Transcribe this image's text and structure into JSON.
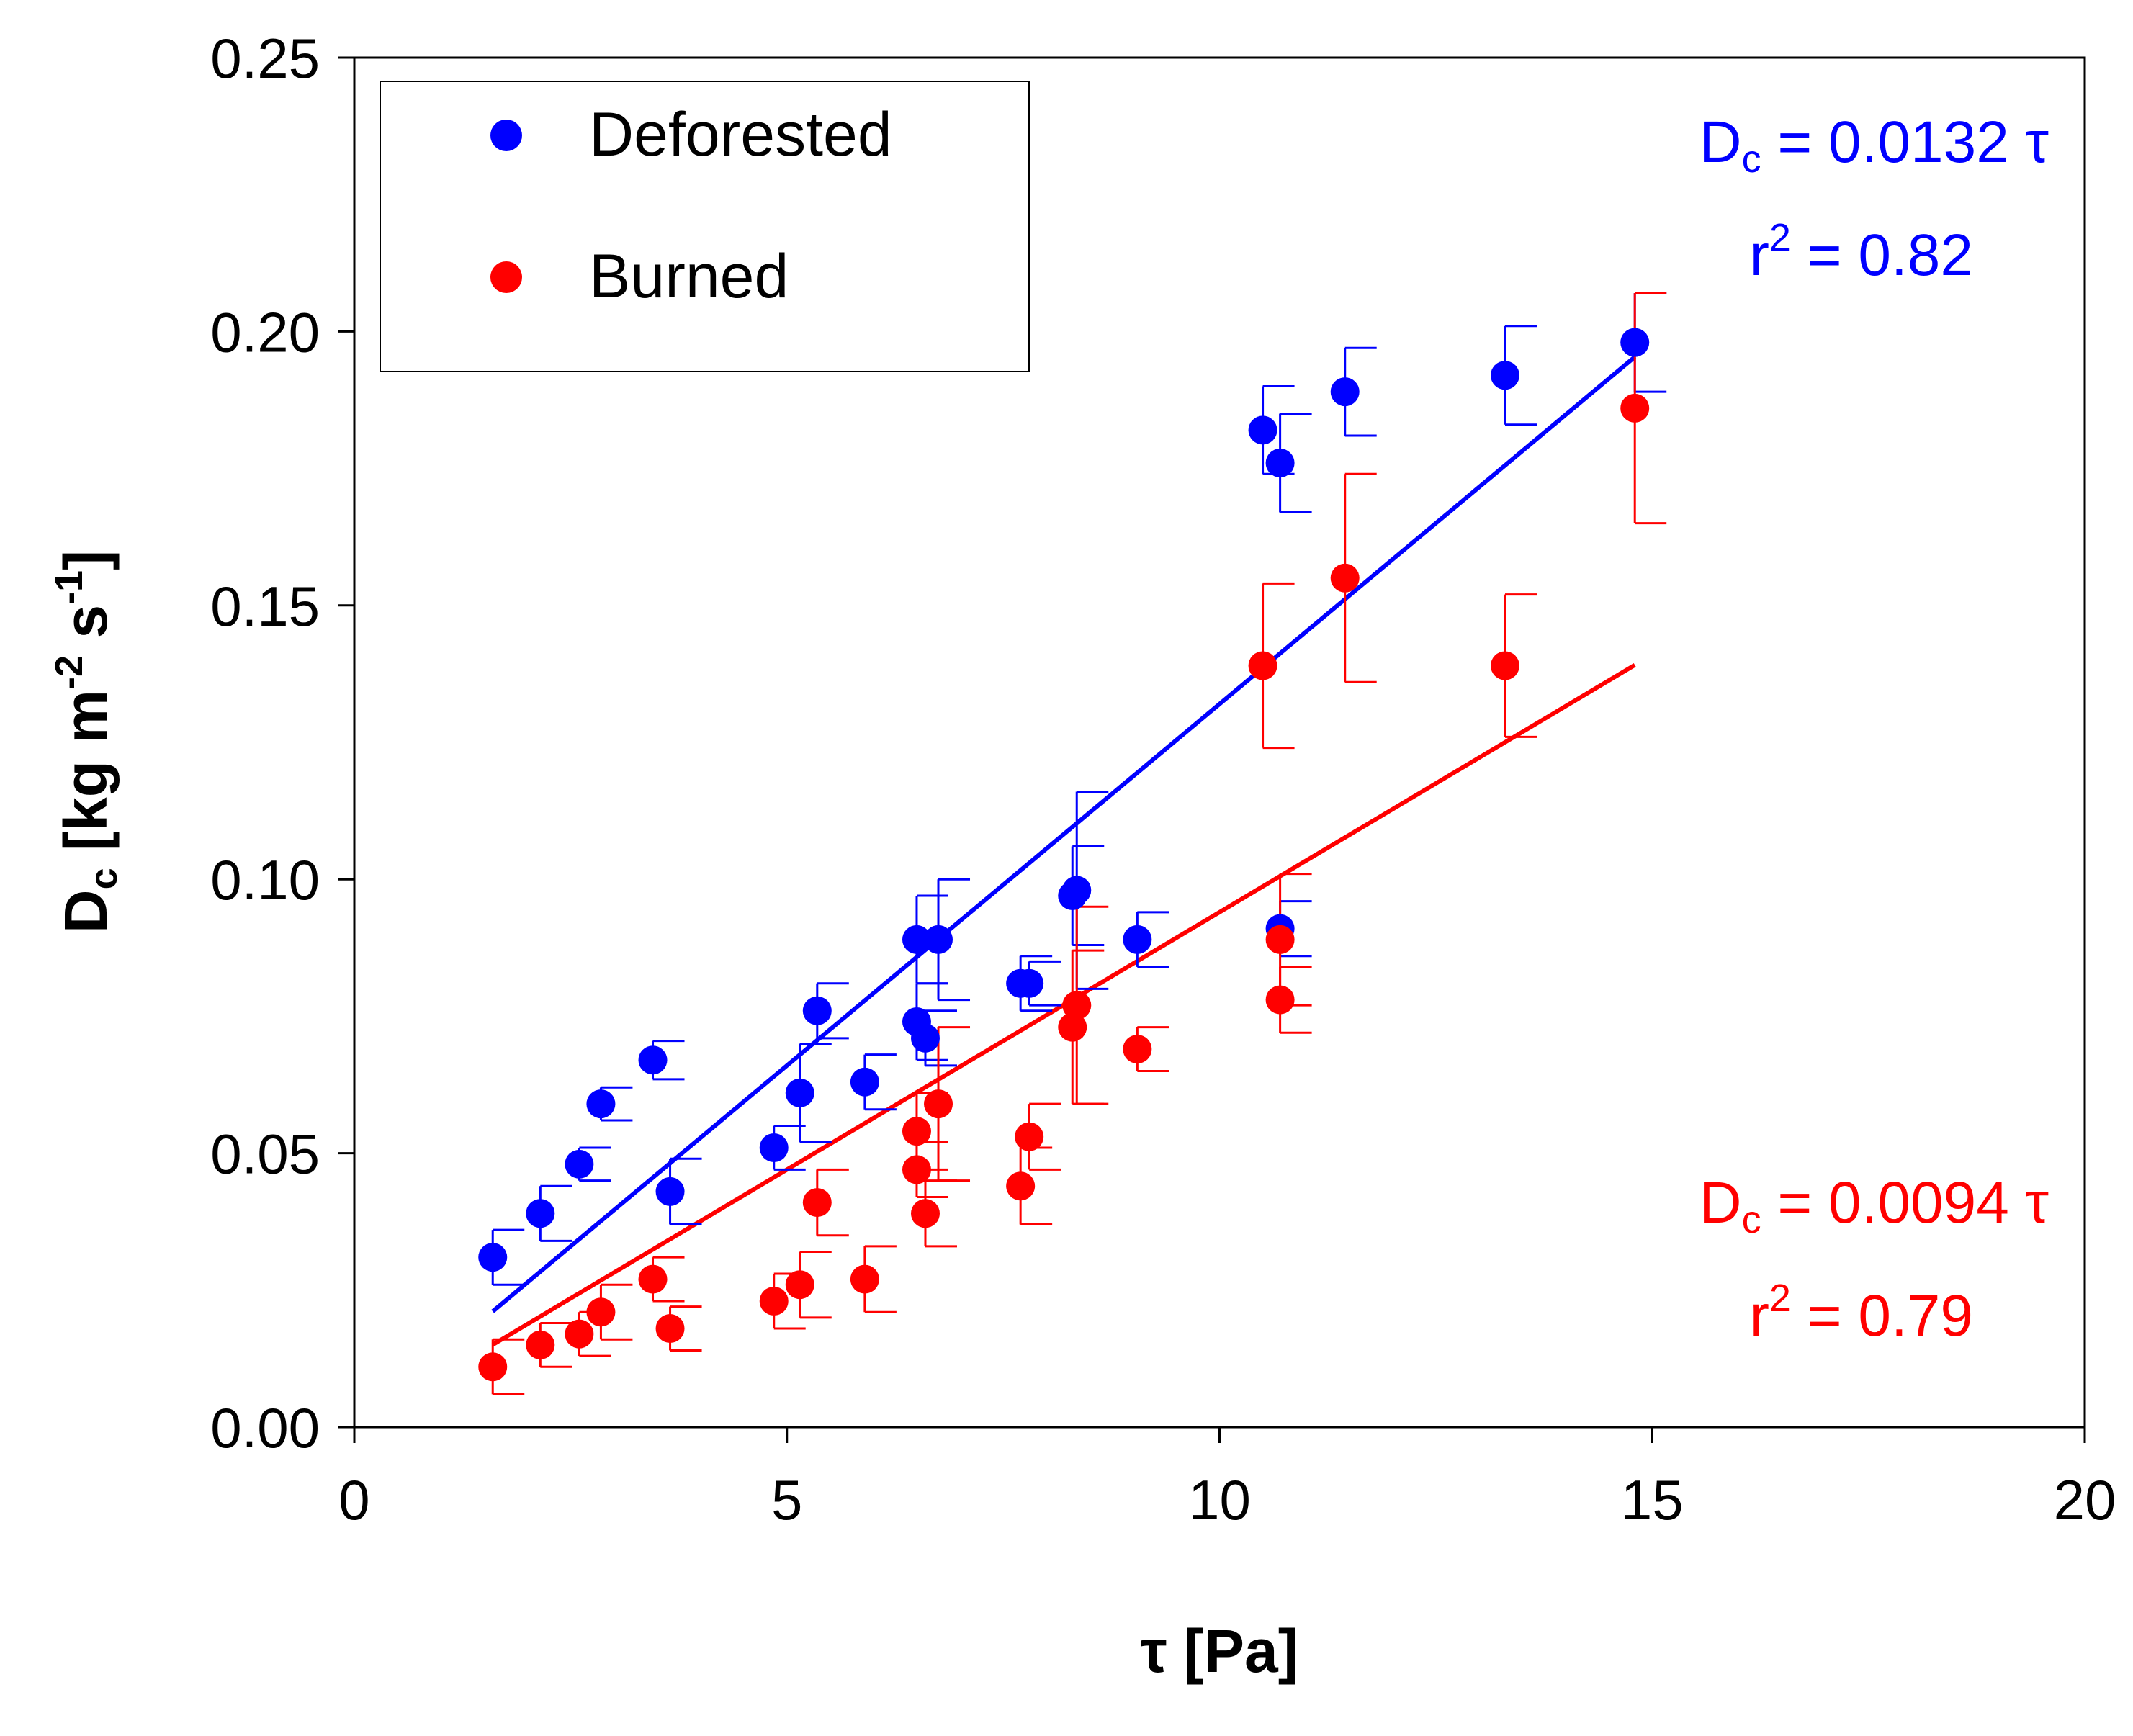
{
  "chart_data": {
    "type": "scatter",
    "title": "",
    "xlabel": "τ [Pa]",
    "ylabel_main": "D",
    "ylabel_sub": "c",
    "ylabel_unit_a": " [kg m",
    "ylabel_exp_a": "-2",
    "ylabel_unit_b": " s",
    "ylabel_exp_b": "-1",
    "ylabel_unit_c": "]",
    "xlim": [
      0,
      20
    ],
    "ylim": [
      0,
      0.25
    ],
    "xticks": [
      0,
      5,
      10,
      15,
      20
    ],
    "xtick_labels": [
      "0",
      "5",
      "10",
      "15",
      "20"
    ],
    "yticks": [
      0,
      0.05,
      0.1,
      0.15,
      0.2,
      0.25
    ],
    "ytick_labels": [
      "0.00",
      "0.05",
      "0.10",
      "0.15",
      "0.20",
      "0.25"
    ],
    "grid": false,
    "legend": {
      "position": "top-left",
      "entries": [
        {
          "label": "Deforested",
          "color": "#0000ff"
        },
        {
          "label": "Burned",
          "color": "#ff0000"
        }
      ]
    },
    "series": [
      {
        "name": "Deforested",
        "color": "#0000ff",
        "points": [
          {
            "x": 1.6,
            "y": 0.031,
            "err": 0.005
          },
          {
            "x": 2.15,
            "y": 0.039,
            "err": 0.005
          },
          {
            "x": 2.6,
            "y": 0.048,
            "err": 0.003
          },
          {
            "x": 2.85,
            "y": 0.059,
            "err": 0.003
          },
          {
            "x": 3.45,
            "y": 0.067,
            "err": 0.0035
          },
          {
            "x": 3.65,
            "y": 0.043,
            "err": 0.006
          },
          {
            "x": 4.85,
            "y": 0.051,
            "err": 0.004
          },
          {
            "x": 5.15,
            "y": 0.061,
            "err": 0.009
          },
          {
            "x": 5.35,
            "y": 0.076,
            "err": 0.005
          },
          {
            "x": 5.9,
            "y": 0.063,
            "err": 0.005
          },
          {
            "x": 6.5,
            "y": 0.089,
            "err": 0.008
          },
          {
            "x": 6.5,
            "y": 0.074,
            "err": 0.007
          },
          {
            "x": 6.6,
            "y": 0.071,
            "err": 0.005
          },
          {
            "x": 6.75,
            "y": 0.089,
            "err": 0.011
          },
          {
            "x": 7.7,
            "y": 0.081,
            "err": 0.005
          },
          {
            "x": 7.8,
            "y": 0.081,
            "err": 0.004
          },
          {
            "x": 8.3,
            "y": 0.097,
            "err": 0.009
          },
          {
            "x": 8.35,
            "y": 0.098,
            "err": 0.018
          },
          {
            "x": 9.05,
            "y": 0.089,
            "err": 0.005
          },
          {
            "x": 10.5,
            "y": 0.182,
            "err": 0.008
          },
          {
            "x": 10.7,
            "y": 0.176,
            "err": 0.009
          },
          {
            "x": 10.7,
            "y": 0.091,
            "err": 0.005
          },
          {
            "x": 11.45,
            "y": 0.189,
            "err": 0.008
          },
          {
            "x": 13.3,
            "y": 0.192,
            "err": 0.009
          },
          {
            "x": 14.8,
            "y": 0.198,
            "err": 0.009
          }
        ],
        "fit": {
          "slope": 0.0132,
          "x_range": [
            1.6,
            14.8
          ]
        }
      },
      {
        "name": "Burned",
        "color": "#ff0000",
        "points": [
          {
            "x": 1.6,
            "y": 0.011,
            "err": 0.005
          },
          {
            "x": 2.15,
            "y": 0.015,
            "err": 0.004
          },
          {
            "x": 2.6,
            "y": 0.017,
            "err": 0.004
          },
          {
            "x": 2.85,
            "y": 0.021,
            "err": 0.005
          },
          {
            "x": 3.45,
            "y": 0.027,
            "err": 0.004
          },
          {
            "x": 3.65,
            "y": 0.018,
            "err": 0.004
          },
          {
            "x": 4.85,
            "y": 0.023,
            "err": 0.005
          },
          {
            "x": 5.15,
            "y": 0.026,
            "err": 0.006
          },
          {
            "x": 5.35,
            "y": 0.041,
            "err": 0.006
          },
          {
            "x": 5.9,
            "y": 0.027,
            "err": 0.006
          },
          {
            "x": 6.5,
            "y": 0.054,
            "err": 0.007
          },
          {
            "x": 6.5,
            "y": 0.047,
            "err": 0.005
          },
          {
            "x": 6.6,
            "y": 0.039,
            "err": 0.006
          },
          {
            "x": 6.75,
            "y": 0.059,
            "err": 0.014
          },
          {
            "x": 7.7,
            "y": 0.044,
            "err": 0.007
          },
          {
            "x": 7.8,
            "y": 0.053,
            "err": 0.006
          },
          {
            "x": 8.3,
            "y": 0.073,
            "err": 0.014
          },
          {
            "x": 8.35,
            "y": 0.077,
            "err": 0.018
          },
          {
            "x": 9.05,
            "y": 0.069,
            "err": 0.004
          },
          {
            "x": 10.5,
            "y": 0.139,
            "err": 0.015
          },
          {
            "x": 10.7,
            "y": 0.089,
            "err": 0.012
          },
          {
            "x": 10.7,
            "y": 0.078,
            "err": 0.006
          },
          {
            "x": 11.45,
            "y": 0.155,
            "err": 0.019
          },
          {
            "x": 13.3,
            "y": 0.139,
            "err": 0.013
          },
          {
            "x": 14.8,
            "y": 0.186,
            "err": 0.021
          }
        ],
        "fit": {
          "slope": 0.0094,
          "x_range": [
            1.6,
            14.8
          ]
        }
      }
    ],
    "annotations": [
      {
        "series": "Deforested",
        "color": "#0000ff",
        "eq_main": "D",
        "eq_sub": "c",
        "eq_rest": " = 0.0132 τ",
        "r_main": "r",
        "r_sup": "2",
        "r_rest": " = 0.82",
        "position": "top-right"
      },
      {
        "series": "Burned",
        "color": "#ff0000",
        "eq_main": "D",
        "eq_sub": "c",
        "eq_rest": " = 0.0094 τ",
        "r_main": "r",
        "r_sup": "2",
        "r_rest": " = 0.79",
        "position": "bottom-right"
      }
    ]
  }
}
